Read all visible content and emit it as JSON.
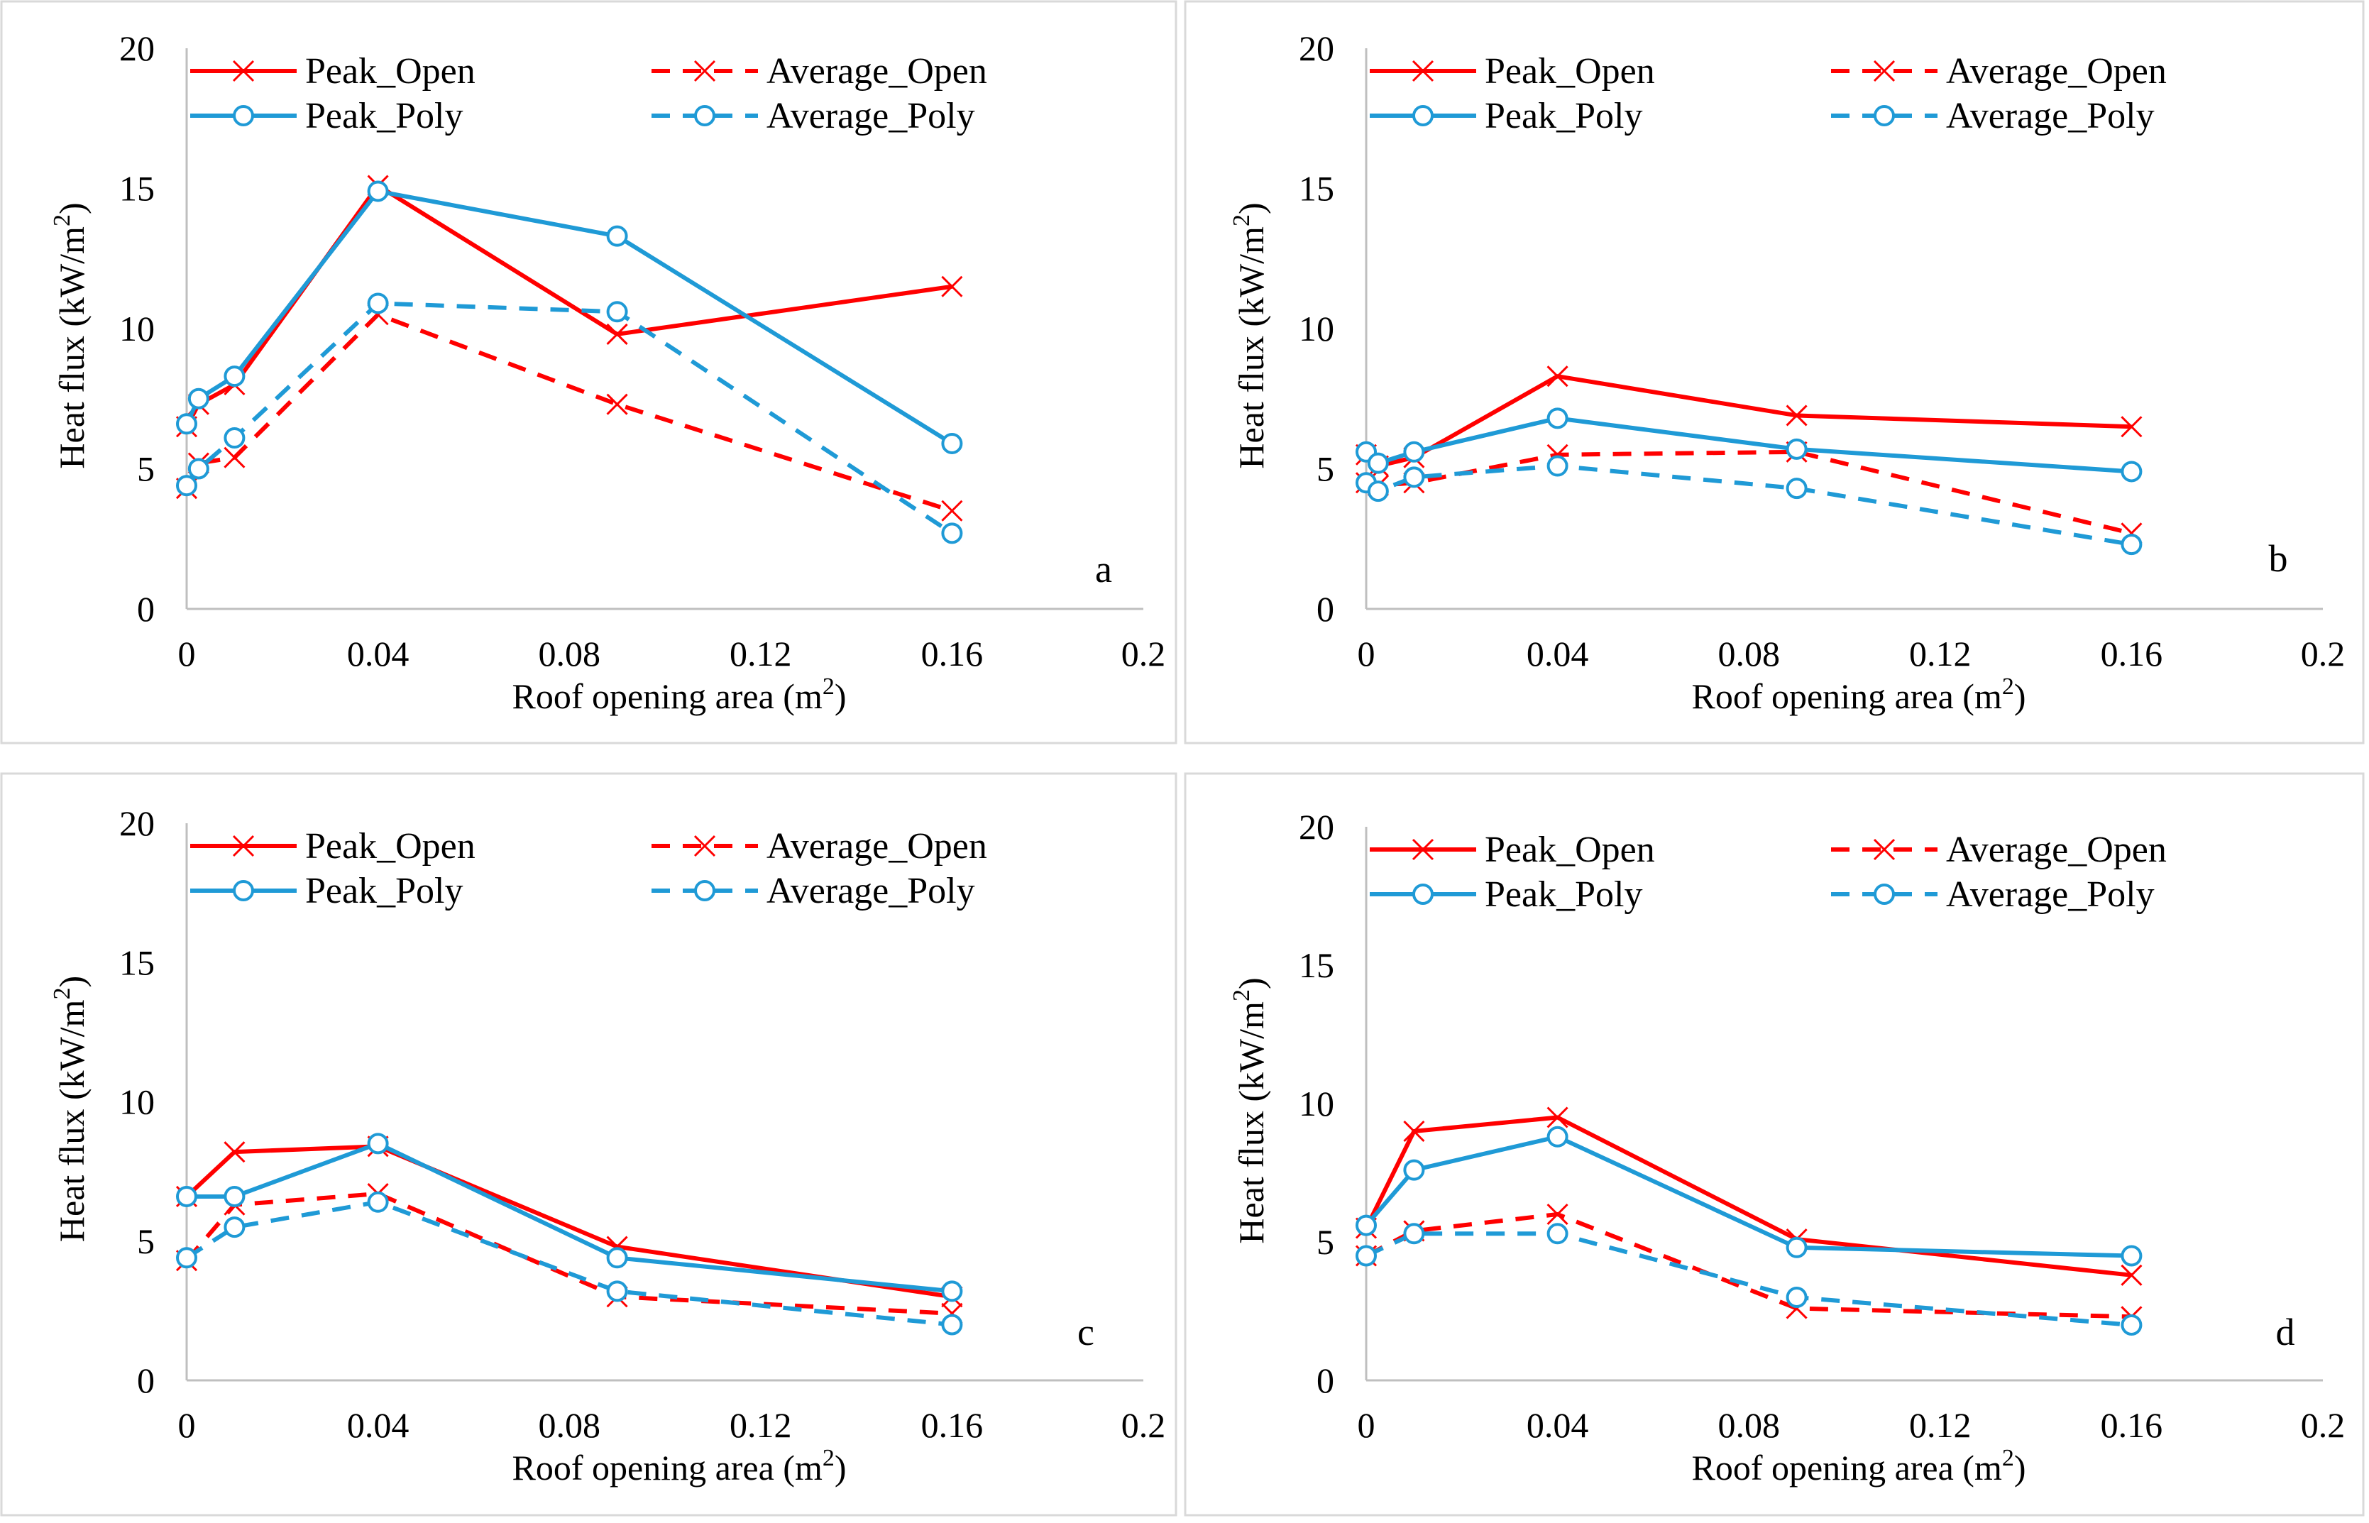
{
  "figure": {
    "xlabel_base": "Roof opening area (m",
    "xlabel_sup": "2",
    "xlabel_tail": ")",
    "ylabel_base": "Heat flux (kW/m",
    "ylabel_sup": "2",
    "ylabel_tail": ")"
  },
  "chart_data": [
    {
      "type": "line",
      "panel": "a",
      "xlim": [
        0,
        0.2
      ],
      "ylim": [
        0,
        20
      ],
      "xticks": [
        "0",
        "0.04",
        "0.08",
        "0.12",
        "0.16",
        "0.2"
      ],
      "yticks": [
        "0",
        "5",
        "10",
        "15",
        "20"
      ],
      "series": [
        {
          "name": "Peak_Open",
          "style": "solid",
          "color": "#ff0000",
          "marker": "x",
          "x": [
            0,
            0.0025,
            0.01,
            0.04,
            0.09,
            0.16
          ],
          "y": [
            6.5,
            7.3,
            8.0,
            15.1,
            9.8,
            11.5
          ]
        },
        {
          "name": "Average_Open",
          "style": "dashed",
          "color": "#ff0000",
          "marker": "x",
          "x": [
            0,
            0.0025,
            0.01,
            0.04,
            0.09,
            0.16
          ],
          "y": [
            4.3,
            5.2,
            5.4,
            10.5,
            7.3,
            3.5
          ]
        },
        {
          "name": "Peak_Poly",
          "style": "solid",
          "color": "#1f9ad6",
          "marker": "o",
          "x": [
            0,
            0.0025,
            0.01,
            0.04,
            0.09,
            0.16
          ],
          "y": [
            6.6,
            7.5,
            8.3,
            14.9,
            13.3,
            5.9
          ]
        },
        {
          "name": "Average_Poly",
          "style": "dashed",
          "color": "#1f9ad6",
          "marker": "o",
          "x": [
            0,
            0.0025,
            0.01,
            0.04,
            0.09,
            0.16
          ],
          "y": [
            4.4,
            5.0,
            6.1,
            10.9,
            10.6,
            2.7
          ]
        }
      ]
    },
    {
      "type": "line",
      "panel": "b",
      "xlim": [
        0,
        0.2
      ],
      "ylim": [
        0,
        20
      ],
      "xticks": [
        "0",
        "0.04",
        "0.08",
        "0.12",
        "0.16",
        "0.2"
      ],
      "yticks": [
        "0",
        "5",
        "10",
        "15",
        "20"
      ],
      "series": [
        {
          "name": "Peak_Open",
          "style": "solid",
          "color": "#ff0000",
          "marker": "x",
          "x": [
            0,
            0.0025,
            0.01,
            0.04,
            0.09,
            0.16
          ],
          "y": [
            5.5,
            5.1,
            5.4,
            8.3,
            6.9,
            6.5
          ]
        },
        {
          "name": "Average_Open",
          "style": "dashed",
          "color": "#ff0000",
          "marker": "x",
          "x": [
            0,
            0.0025,
            0.01,
            0.04,
            0.09,
            0.16
          ],
          "y": [
            4.5,
            4.4,
            4.5,
            5.5,
            5.6,
            2.7
          ]
        },
        {
          "name": "Peak_Poly",
          "style": "solid",
          "color": "#1f9ad6",
          "marker": "o",
          "x": [
            0,
            0.0025,
            0.01,
            0.04,
            0.09,
            0.16
          ],
          "y": [
            5.6,
            5.2,
            5.6,
            6.8,
            5.7,
            4.9
          ]
        },
        {
          "name": "Average_Poly",
          "style": "dashed",
          "color": "#1f9ad6",
          "marker": "o",
          "x": [
            0,
            0.0025,
            0.01,
            0.04,
            0.09,
            0.16
          ],
          "y": [
            4.5,
            4.2,
            4.7,
            5.1,
            4.3,
            2.3
          ]
        }
      ]
    },
    {
      "type": "line",
      "panel": "c",
      "xlim": [
        0,
        0.2
      ],
      "ylim": [
        0,
        20
      ],
      "xticks": [
        "0",
        "0.04",
        "0.08",
        "0.12",
        "0.16",
        "0.2"
      ],
      "yticks": [
        "0",
        "5",
        "10",
        "15",
        "20"
      ],
      "series": [
        {
          "name": "Peak_Open",
          "style": "solid",
          "color": "#ff0000",
          "marker": "x",
          "x": [
            0,
            0.01,
            0.04,
            0.09,
            0.16
          ],
          "y": [
            6.6,
            8.2,
            8.4,
            4.8,
            3.0
          ]
        },
        {
          "name": "Average_Open",
          "style": "dashed",
          "color": "#ff0000",
          "marker": "x",
          "x": [
            0,
            0.01,
            0.04,
            0.09,
            0.16
          ],
          "y": [
            4.3,
            6.3,
            6.7,
            3.0,
            2.4
          ]
        },
        {
          "name": "Peak_Poly",
          "style": "solid",
          "color": "#1f9ad6",
          "marker": "o",
          "x": [
            0,
            0.01,
            0.04,
            0.09,
            0.16
          ],
          "y": [
            6.6,
            6.6,
            8.5,
            4.4,
            3.2
          ]
        },
        {
          "name": "Average_Poly",
          "style": "dashed",
          "color": "#1f9ad6",
          "marker": "o",
          "x": [
            0,
            0.01,
            0.04,
            0.09,
            0.16
          ],
          "y": [
            4.4,
            5.5,
            6.4,
            3.2,
            2.0
          ]
        }
      ]
    },
    {
      "type": "line",
      "panel": "d",
      "xlim": [
        0,
        0.2
      ],
      "ylim": [
        0,
        20
      ],
      "xticks": [
        "0",
        "0.04",
        "0.08",
        "0.12",
        "0.16",
        "0.2"
      ],
      "yticks": [
        "0",
        "5",
        "10",
        "15",
        "20"
      ],
      "series": [
        {
          "name": "Peak_Open",
          "style": "solid",
          "color": "#ff0000",
          "marker": "x",
          "x": [
            0,
            0.01,
            0.04,
            0.09,
            0.16
          ],
          "y": [
            5.5,
            9.0,
            9.5,
            5.1,
            3.8
          ]
        },
        {
          "name": "Average_Open",
          "style": "dashed",
          "color": "#ff0000",
          "marker": "x",
          "x": [
            0,
            0.01,
            0.04,
            0.09,
            0.16
          ],
          "y": [
            4.5,
            5.4,
            6.0,
            2.6,
            2.3
          ]
        },
        {
          "name": "Peak_Poly",
          "style": "solid",
          "color": "#1f9ad6",
          "marker": "o",
          "x": [
            0,
            0.01,
            0.04,
            0.09,
            0.16
          ],
          "y": [
            5.6,
            7.6,
            8.8,
            4.8,
            4.5
          ]
        },
        {
          "name": "Average_Poly",
          "style": "dashed",
          "color": "#1f9ad6",
          "marker": "o",
          "x": [
            0,
            0.01,
            0.04,
            0.09,
            0.16
          ],
          "y": [
            4.5,
            5.3,
            5.3,
            3.0,
            2.0
          ]
        }
      ]
    }
  ]
}
